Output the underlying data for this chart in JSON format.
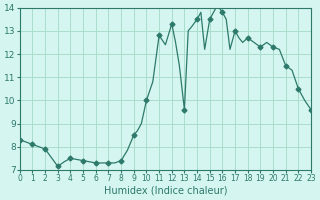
{
  "title": "",
  "xlabel": "Humidex (Indice chaleur)",
  "ylabel": "",
  "bg_color": "#d5f5f0",
  "line_color": "#2d7a6b",
  "marker_color": "#2d7a6b",
  "grid_color": "#aaddcc",
  "xlim": [
    0,
    23
  ],
  "ylim": [
    7,
    14
  ],
  "yticks": [
    7,
    8,
    9,
    10,
    11,
    12,
    13,
    14
  ],
  "xticks": [
    0,
    1,
    2,
    3,
    4,
    5,
    6,
    7,
    8,
    9,
    10,
    11,
    12,
    13,
    14,
    15,
    16,
    17,
    18,
    19,
    20,
    21,
    22,
    23
  ],
  "x": [
    0,
    1,
    2,
    3,
    3.5,
    4,
    4.5,
    5,
    5.5,
    6,
    6.5,
    7,
    7.5,
    8,
    8.5,
    9,
    9.3,
    9.6,
    10,
    10.5,
    11,
    11.5,
    12,
    12.3,
    12.6,
    13,
    13.3,
    13.6,
    14,
    14.3,
    14.6,
    15,
    15.3,
    15.6,
    16,
    16.3,
    16.6,
    17,
    17.3,
    17.6,
    18,
    18.5,
    19,
    19.5,
    20,
    20.5,
    21,
    21.5,
    22,
    22.5,
    23
  ],
  "y": [
    8.3,
    8.1,
    7.9,
    7.15,
    7.35,
    7.5,
    7.45,
    7.4,
    7.35,
    7.3,
    7.3,
    7.3,
    7.3,
    7.4,
    7.85,
    8.5,
    8.7,
    9.0,
    10.0,
    10.8,
    12.8,
    12.4,
    13.3,
    12.5,
    11.5,
    9.6,
    13.0,
    13.2,
    13.5,
    13.8,
    12.2,
    13.5,
    13.8,
    14.1,
    13.8,
    13.5,
    12.2,
    13.0,
    12.7,
    12.5,
    12.7,
    12.5,
    12.3,
    12.5,
    12.3,
    12.2,
    11.5,
    11.3,
    10.5,
    10.0,
    9.6
  ],
  "marker_x": [
    0,
    1,
    2,
    3,
    4,
    5,
    6,
    7,
    8,
    9,
    10,
    11,
    12,
    13,
    14,
    15,
    16,
    17,
    18,
    19,
    20,
    21,
    22,
    23
  ],
  "marker_y": [
    8.3,
    8.1,
    7.9,
    7.15,
    7.5,
    7.4,
    7.3,
    7.3,
    7.4,
    8.5,
    10.0,
    12.8,
    13.3,
    9.6,
    13.5,
    13.5,
    13.8,
    13.0,
    12.7,
    12.3,
    12.3,
    11.5,
    10.5,
    9.6
  ]
}
